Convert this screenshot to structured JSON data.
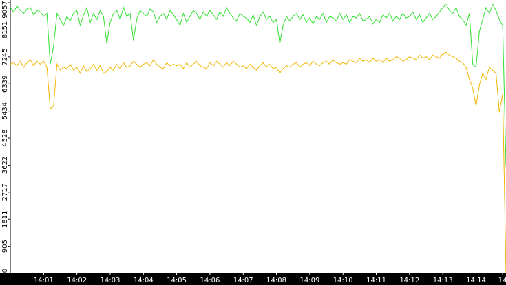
{
  "chart_data": {
    "type": "line",
    "categories": [
      null,
      null,
      null,
      null,
      null,
      null,
      null,
      null,
      null,
      null,
      "14:01",
      null,
      null,
      null,
      null,
      null,
      null,
      null,
      null,
      null,
      "14:02",
      null,
      null,
      null,
      null,
      null,
      null,
      null,
      null,
      null,
      "14:03",
      null,
      null,
      null,
      null,
      null,
      null,
      null,
      null,
      null,
      "14:04",
      null,
      null,
      null,
      null,
      null,
      null,
      null,
      null,
      null,
      "14:05",
      null,
      null,
      null,
      null,
      null,
      null,
      null,
      null,
      null,
      "14:06",
      null,
      null,
      null,
      null,
      null,
      null,
      null,
      null,
      null,
      "14:07",
      null,
      null,
      null,
      null,
      null,
      null,
      null,
      null,
      null,
      "14:08",
      null,
      null,
      null,
      null,
      null,
      null,
      null,
      null,
      null,
      "14:09",
      null,
      null,
      null,
      null,
      null,
      null,
      null,
      null,
      null,
      "14:10",
      null,
      null,
      null,
      null,
      null,
      null,
      null,
      null,
      null,
      "14:11",
      null,
      null,
      null,
      null,
      null,
      null,
      null,
      null,
      null,
      "14:12",
      null,
      null,
      null,
      null,
      null,
      null,
      null,
      null,
      null,
      "14:13",
      null,
      null,
      null,
      null,
      null,
      null,
      null,
      null,
      null,
      "14:14",
      null,
      null,
      null,
      null,
      null,
      null,
      null,
      "14",
      null
    ],
    "series": [
      {
        "color": "#2fe02f",
        "values": [
          8900,
          8750,
          8950,
          8800,
          8700,
          8850,
          8900,
          8650,
          8800,
          8750,
          8600,
          8700,
          7000,
          7600,
          8700,
          8500,
          8300,
          8600,
          8450,
          8700,
          8800,
          8300,
          8650,
          8900,
          8400,
          8700,
          8500,
          8800,
          8600,
          7700,
          8400,
          8700,
          8800,
          8500,
          8900,
          8600,
          8700,
          7800,
          8500,
          8800,
          8700,
          8600,
          8850,
          8750,
          8400,
          8600,
          8700,
          8500,
          8800,
          8650,
          8500,
          8300,
          8700,
          8400,
          8600,
          8800,
          8700,
          8500,
          8750,
          8600,
          8800,
          8650,
          8500,
          8750,
          8600,
          8900,
          8700,
          8550,
          8450,
          8700,
          8600,
          8550,
          8400,
          8650,
          8300,
          8600,
          8750,
          8500,
          8600,
          8400,
          8500,
          7700,
          8300,
          8600,
          8450,
          8600,
          8700,
          8500,
          8650,
          8400,
          8550,
          8350,
          8600,
          8500,
          8700,
          8400,
          8600,
          8550,
          8450,
          8700,
          8500,
          8650,
          8400,
          8600,
          8550,
          8700,
          8450,
          8500,
          8600,
          8350,
          8500,
          8400,
          8650,
          8550,
          8700,
          8450,
          8600,
          8500,
          8700,
          8550,
          8600,
          8750,
          8500,
          8650,
          8400,
          8550,
          8700,
          8500,
          8600,
          8750,
          8900,
          9000,
          8800,
          8700,
          8900,
          8600,
          8500,
          8300,
          8700,
          7000,
          6900,
          8100,
          8500,
          8900,
          8700,
          9000,
          8800,
          8500,
          8300,
          3600
        ]
      },
      {
        "color": "#f0b400",
        "values": [
          7000,
          7050,
          6950,
          7100,
          6900,
          7050,
          7150,
          6950,
          7100,
          7000,
          7100,
          6900,
          5500,
          5600,
          7000,
          6800,
          6900,
          6850,
          7000,
          6800,
          6900,
          6700,
          6950,
          6750,
          6850,
          7000,
          6800,
          6950,
          6700,
          6750,
          6900,
          6800,
          7000,
          6850,
          7050,
          6900,
          6950,
          7100,
          7000,
          6900,
          7000,
          7050,
          6950,
          7150,
          7000,
          6900,
          6850,
          7050,
          6950,
          7000,
          6950,
          7000,
          6850,
          7050,
          6900,
          7000,
          7100,
          6950,
          6900,
          6850,
          7050,
          6950,
          7100,
          7000,
          6900,
          7050,
          6950,
          7100,
          7000,
          6900,
          6950,
          6850,
          7000,
          6900,
          6800,
          6950,
          7050,
          6900,
          7000,
          6850,
          6900,
          6700,
          6850,
          6950,
          6900,
          7000,
          7050,
          6900,
          7000,
          7050,
          6950,
          7100,
          7000,
          6950,
          7050,
          7100,
          7000,
          7150,
          7050,
          7000,
          7050,
          7000,
          7150,
          7100,
          7050,
          7200,
          7100,
          7150,
          7050,
          7200,
          7100,
          7150,
          7050,
          7200,
          7100,
          7150,
          7250,
          7200,
          7100,
          7150,
          7250,
          7200,
          7150,
          7300,
          7200,
          7250,
          7150,
          7300,
          7250,
          7200,
          7350,
          7400,
          7300,
          7250,
          7200,
          7100,
          7050,
          6900,
          6500,
          6200,
          5600,
          6300,
          6700,
          6500,
          6900,
          6800,
          6700,
          5400,
          6000,
          0
        ]
      }
    ],
    "ylim": [
      0,
      9150
    ],
    "yticks": [
      0,
      905,
      1811,
      2717,
      3622,
      4528,
      5434,
      6339,
      7245,
      8151,
      9057
    ]
  }
}
